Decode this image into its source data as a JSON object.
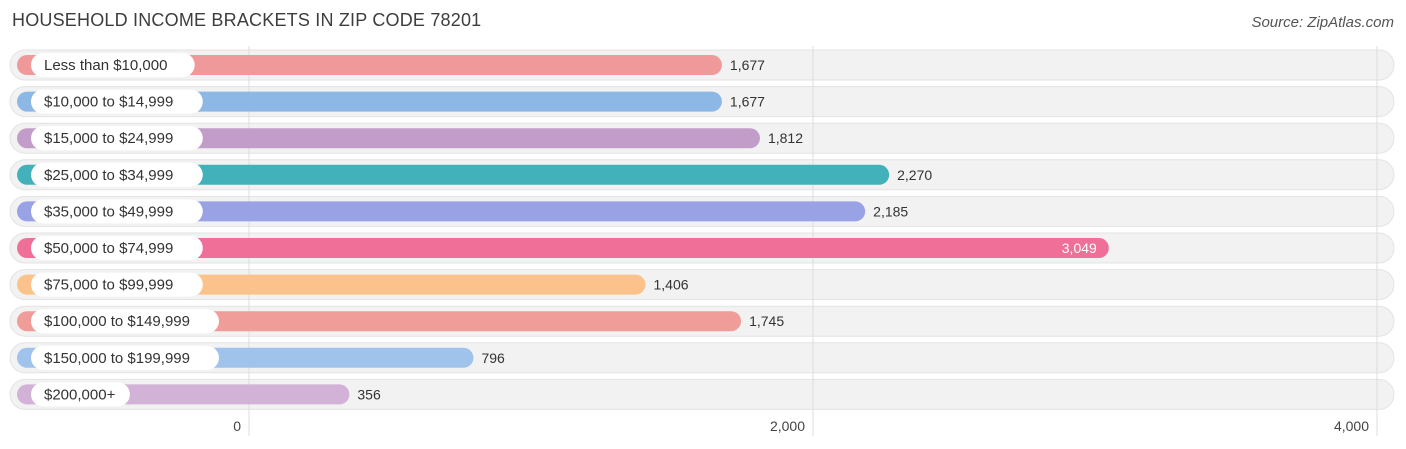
{
  "chart_data": {
    "type": "bar",
    "orientation": "horizontal",
    "title": "HOUSEHOLD INCOME BRACKETS IN ZIP CODE 78201",
    "source": "Source: ZipAtlas.com",
    "xlabel": "",
    "ylabel": "",
    "xlim": [
      0,
      4000
    ],
    "ticks": [
      0,
      2000,
      4000
    ],
    "tick_labels": [
      "0",
      "2,000",
      "4,000"
    ],
    "categories": [
      "Less than $10,000",
      "$10,000 to $14,999",
      "$15,000 to $24,999",
      "$25,000 to $34,999",
      "$35,000 to $49,999",
      "$50,000 to $74,999",
      "$75,000 to $99,999",
      "$100,000 to $149,999",
      "$150,000 to $199,999",
      "$200,000+"
    ],
    "values": [
      1677,
      1677,
      1812,
      2270,
      2185,
      3049,
      1406,
      1745,
      796,
      356
    ],
    "value_labels": [
      "1,677",
      "1,677",
      "1,812",
      "2,270",
      "2,185",
      "3,049",
      "1,406",
      "1,745",
      "796",
      "356"
    ],
    "colors": [
      "#f0999a",
      "#8db7e4",
      "#c39dc9",
      "#42b1b9",
      "#98a2e5",
      "#f06f98",
      "#fbc28c",
      "#f09c99",
      "#9fc3ea",
      "#d2b2d6"
    ],
    "highlight_index": 5
  }
}
